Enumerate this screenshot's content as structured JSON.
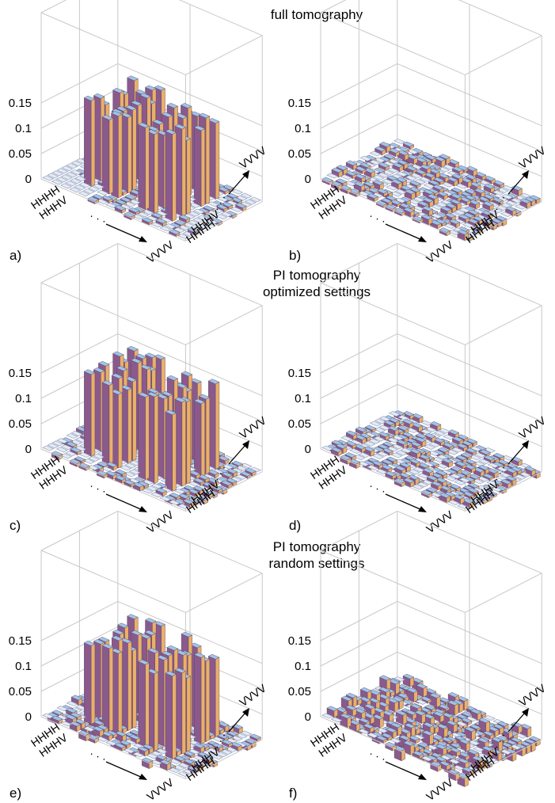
{
  "sections": [
    {
      "title_lines": [
        "full tomography"
      ]
    },
    {
      "title_lines": [
        "PI tomography",
        "optimized settings"
      ]
    },
    {
      "title_lines": [
        "PI tomography",
        "random settings"
      ]
    }
  ],
  "colors": {
    "bar_front": "#8a5a8c",
    "bar_side": "#e9b06a",
    "bar_top": "#9fc4e8",
    "bar_edge": "#5b3f5c",
    "tile_fill": "#e4ebf6",
    "tile_edge": "#8b97b5",
    "box_line": "#c8c8c8"
  },
  "chart_data": [
    {
      "panel_label": "a)",
      "type": "bar3d",
      "part": "real",
      "z_ticks": [
        "0",
        "0.05",
        "0.1",
        "0.15"
      ],
      "row_labels": [
        "HHHH",
        "HHHV",
        "· · ·",
        "VVVV"
      ],
      "col_labels": [
        "HHHH",
        "HHHV",
        "· · ·",
        "VVVV"
      ],
      "pattern": "dicke",
      "peak": 0.167,
      "noise": 0.006
    },
    {
      "panel_label": "b)",
      "type": "bar3d",
      "part": "imaginary",
      "z_ticks": [
        "0",
        "0.05",
        "0.1",
        "0.15"
      ],
      "row_labels": [
        "HHHH",
        "HHHV",
        "· · ·",
        "VVVV"
      ],
      "col_labels": [
        "HHHH",
        "HHHV",
        "· · ·",
        "VVVV"
      ],
      "pattern": "none",
      "peak": 0.0,
      "noise": 0.012
    },
    {
      "panel_label": "c)",
      "type": "bar3d",
      "part": "real",
      "z_ticks": [
        "0",
        "0.05",
        "0.1",
        "0.15"
      ],
      "row_labels": [
        "HHHH",
        "HHHV",
        "· · ·",
        "VVVV"
      ],
      "col_labels": [
        "HHHH",
        "HHHV",
        "· · ·",
        "VVVV"
      ],
      "pattern": "dicke",
      "peak": 0.167,
      "noise": 0.008
    },
    {
      "panel_label": "d)",
      "type": "bar3d",
      "part": "imaginary",
      "z_ticks": [
        "0",
        "0.05",
        "0.1",
        "0.15"
      ],
      "row_labels": [
        "HHHH",
        "HHHV",
        "· · ·",
        "VVVV"
      ],
      "col_labels": [
        "HHHH",
        "HHHV",
        "· · ·",
        "VVVV"
      ],
      "pattern": "none",
      "peak": 0.0,
      "noise": 0.01
    },
    {
      "panel_label": "e)",
      "type": "bar3d",
      "part": "real",
      "z_ticks": [
        "0",
        "0.05",
        "0.1",
        "0.15"
      ],
      "row_labels": [
        "HHHH",
        "HHHV",
        "· · ·",
        "VVVV"
      ],
      "col_labels": [
        "HHHH",
        "HHHV",
        "· · ·",
        "VVVV"
      ],
      "pattern": "dicke",
      "peak": 0.167,
      "noise": 0.012
    },
    {
      "panel_label": "f)",
      "type": "bar3d",
      "part": "imaginary",
      "z_ticks": [
        "0",
        "0.05",
        "0.1",
        "0.15"
      ],
      "row_labels": [
        "HHHH",
        "HHHV",
        "· · ·",
        "VVVV"
      ],
      "col_labels": [
        "HHHH",
        "HHHV",
        "· · ·",
        "VVVV"
      ],
      "pattern": "none",
      "peak": 0.0,
      "noise": 0.02
    }
  ]
}
